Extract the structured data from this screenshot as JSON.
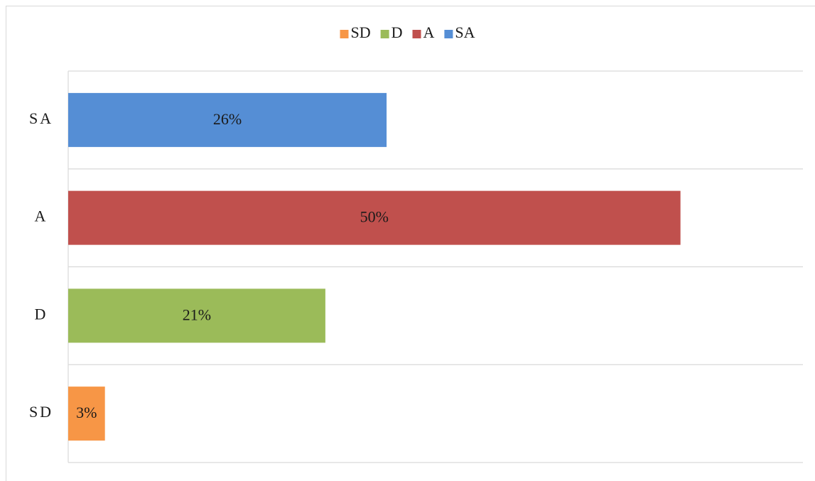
{
  "chart_data": {
    "type": "bar",
    "orientation": "horizontal",
    "categories": [
      "SD",
      "D",
      "A",
      "SA"
    ],
    "series": [
      {
        "name": "SD",
        "color": "#f79646",
        "values": [
          3,
          null,
          null,
          null
        ],
        "value_labels": [
          "3%",
          null,
          null,
          null
        ]
      },
      {
        "name": "D",
        "color": "#9bbb59",
        "values": [
          null,
          21,
          null,
          null
        ],
        "value_labels": [
          null,
          "21%",
          null,
          null
        ]
      },
      {
        "name": "A",
        "color": "#c0504d",
        "values": [
          null,
          null,
          50,
          null
        ],
        "value_labels": [
          null,
          null,
          "50%",
          null
        ]
      },
      {
        "name": "SA",
        "color": "#558ed5",
        "values": [
          null,
          null,
          null,
          26
        ],
        "value_labels": [
          null,
          null,
          null,
          "26%"
        ]
      }
    ],
    "xlim": [
      0,
      60
    ],
    "grid": true,
    "legend": "top"
  }
}
